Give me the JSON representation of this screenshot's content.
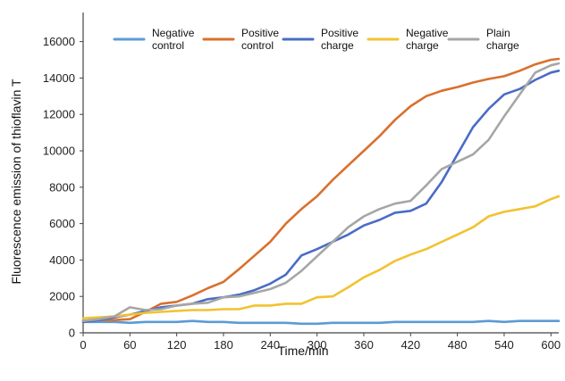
{
  "chart_data": {
    "type": "line",
    "title": "",
    "xlabel": "Time/min",
    "ylabel": "Fluorescence emission of thioflavin T",
    "xlim": [
      0,
      610
    ],
    "ylim": [
      0,
      17600
    ],
    "xticks": [
      0,
      60,
      120,
      180,
      240,
      300,
      360,
      420,
      480,
      540,
      600
    ],
    "yticks": [
      0,
      2000,
      4000,
      6000,
      8000,
      10000,
      12000,
      14000,
      16000
    ],
    "grid": false,
    "legend_position": "top",
    "series": [
      {
        "name": "Negative control",
        "legend_lines": [
          "Negative",
          "control"
        ],
        "color": "#5b9bd5",
        "x": [
          0,
          20,
          40,
          60,
          80,
          100,
          120,
          140,
          160,
          180,
          200,
          220,
          240,
          260,
          280,
          300,
          320,
          340,
          360,
          380,
          400,
          420,
          440,
          460,
          480,
          500,
          520,
          540,
          560,
          580,
          600,
          610
        ],
        "y": [
          600,
          600,
          600,
          550,
          600,
          600,
          600,
          650,
          600,
          600,
          550,
          550,
          550,
          550,
          500,
          500,
          550,
          550,
          550,
          550,
          600,
          600,
          600,
          600,
          600,
          600,
          650,
          600,
          650,
          650,
          650,
          650
        ]
      },
      {
        "name": "Positive control",
        "legend_lines": [
          "Positive",
          "control"
        ],
        "color": "#d9702e",
        "x": [
          0,
          20,
          40,
          60,
          80,
          100,
          120,
          140,
          160,
          180,
          200,
          220,
          240,
          260,
          280,
          300,
          320,
          340,
          360,
          380,
          400,
          420,
          440,
          460,
          480,
          500,
          520,
          540,
          560,
          580,
          600,
          610
        ],
        "y": [
          650,
          700,
          700,
          750,
          1150,
          1600,
          1700,
          2050,
          2450,
          2800,
          3500,
          4250,
          5000,
          6000,
          6800,
          7500,
          8400,
          9200,
          10000,
          10800,
          11700,
          12450,
          13000,
          13300,
          13500,
          13750,
          13950,
          14100,
          14400,
          14750,
          15000,
          15050
        ]
      },
      {
        "name": "Positive charge",
        "legend_lines": [
          "Positive",
          "charge"
        ],
        "color": "#4a6cc4",
        "x": [
          0,
          20,
          40,
          60,
          80,
          100,
          120,
          140,
          160,
          180,
          200,
          220,
          240,
          260,
          280,
          300,
          320,
          340,
          360,
          380,
          400,
          420,
          440,
          460,
          480,
          500,
          520,
          540,
          560,
          580,
          600,
          610
        ],
        "y": [
          600,
          700,
          850,
          1000,
          1200,
          1400,
          1500,
          1600,
          1850,
          1950,
          2100,
          2350,
          2700,
          3200,
          4250,
          4600,
          5000,
          5400,
          5900,
          6200,
          6600,
          6700,
          7100,
          8300,
          9800,
          11300,
          12300,
          13100,
          13400,
          13900,
          14300,
          14400
        ]
      },
      {
        "name": "Negative charge",
        "legend_lines": [
          "Negative",
          "charge"
        ],
        "color": "#f2c230",
        "x": [
          0,
          20,
          40,
          60,
          80,
          100,
          120,
          140,
          160,
          180,
          200,
          220,
          240,
          260,
          280,
          300,
          320,
          340,
          360,
          380,
          400,
          420,
          440,
          460,
          480,
          500,
          520,
          540,
          560,
          580,
          600,
          610
        ],
        "y": [
          800,
          850,
          900,
          1000,
          1100,
          1150,
          1200,
          1250,
          1250,
          1300,
          1300,
          1500,
          1500,
          1600,
          1600,
          1950,
          2000,
          2500,
          3050,
          3450,
          3950,
          4300,
          4600,
          5000,
          5400,
          5800,
          6400,
          6650,
          6800,
          6950,
          7350,
          7500
        ]
      },
      {
        "name": "Plain charge",
        "legend_lines": [
          "Plain",
          "charge"
        ],
        "color": "#a6a6a6",
        "x": [
          0,
          20,
          40,
          60,
          80,
          100,
          120,
          140,
          160,
          180,
          200,
          220,
          240,
          260,
          280,
          300,
          320,
          340,
          360,
          380,
          400,
          420,
          440,
          460,
          480,
          500,
          520,
          540,
          560,
          580,
          600,
          610
        ],
        "y": [
          650,
          750,
          900,
          1400,
          1250,
          1300,
          1500,
          1600,
          1650,
          1950,
          2000,
          2200,
          2400,
          2750,
          3400,
          4200,
          5000,
          5800,
          6400,
          6800,
          7100,
          7250,
          8100,
          9000,
          9400,
          9800,
          10600,
          11900,
          13100,
          14300,
          14700,
          14800
        ]
      }
    ]
  }
}
